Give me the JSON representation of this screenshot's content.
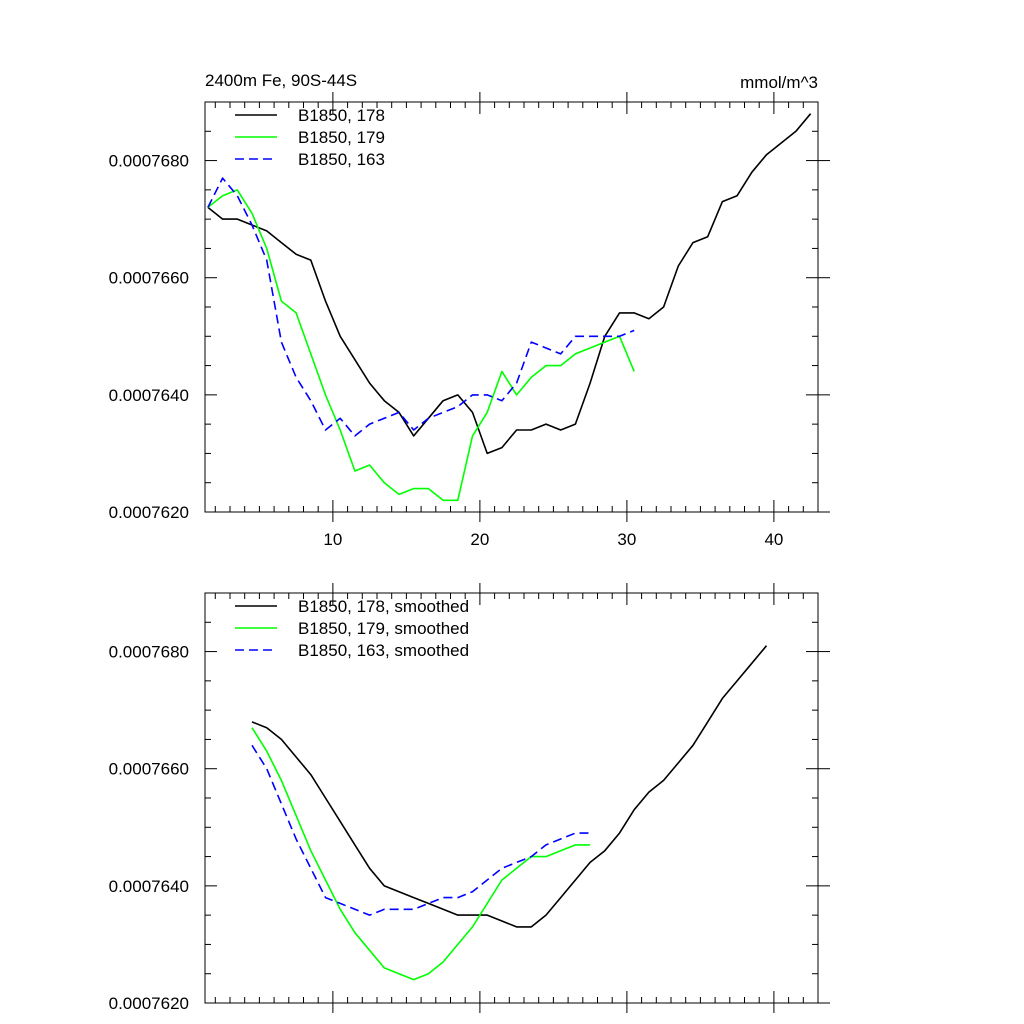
{
  "chart_data": [
    {
      "type": "line",
      "title": "2400m Fe, 90S-44S",
      "units": "mmol/m^3",
      "xlim": [
        1.3,
        43
      ],
      "ylim": [
        0.000762,
        0.000769
      ],
      "xticks": [
        10,
        20,
        30,
        40
      ],
      "xtick_labels": [
        "10",
        "20",
        "30",
        "40"
      ],
      "yticks": [
        0.000762,
        0.000764,
        0.000766,
        0.000768
      ],
      "ytick_labels": [
        "0.0007620",
        "0.0007640",
        "0.0007660",
        "0.0007680"
      ],
      "legend_position": "top-left",
      "grid": false,
      "series": [
        {
          "name": "B1850, 178",
          "color": "#000000",
          "dash": "solid",
          "x": [
            1.5,
            2.5,
            3.5,
            4.5,
            5.5,
            6.5,
            7.5,
            8.5,
            9.5,
            10.5,
            11.5,
            12.5,
            13.5,
            14.5,
            15.5,
            16.5,
            17.5,
            18.5,
            19.5,
            20.5,
            21.5,
            22.5,
            23.5,
            24.5,
            25.5,
            26.5,
            27.5,
            28.5,
            29.5,
            30.5,
            31.5,
            32.5,
            33.5,
            34.5,
            35.5,
            36.5,
            37.5,
            38.5,
            39.5,
            40.5,
            41.5,
            42.5
          ],
          "y": [
            0.0007672,
            0.000767,
            0.000767,
            0.0007669,
            0.0007668,
            0.0007666,
            0.0007664,
            0.0007663,
            0.0007656,
            0.000765,
            0.0007646,
            0.0007642,
            0.0007639,
            0.0007637,
            0.0007633,
            0.0007636,
            0.0007639,
            0.000764,
            0.0007637,
            0.000763,
            0.0007631,
            0.0007634,
            0.0007634,
            0.0007635,
            0.0007634,
            0.0007635,
            0.0007642,
            0.000765,
            0.0007654,
            0.0007654,
            0.0007653,
            0.0007655,
            0.0007662,
            0.0007666,
            0.0007667,
            0.0007673,
            0.0007674,
            0.0007678,
            0.0007681,
            0.0007683,
            0.0007685,
            0.0007688
          ]
        },
        {
          "name": "B1850, 179",
          "color": "#00ff00",
          "dash": "solid",
          "x": [
            1.5,
            2.5,
            3.5,
            4.5,
            5.5,
            6.5,
            7.5,
            8.5,
            9.5,
            10.5,
            11.5,
            12.5,
            13.5,
            14.5,
            15.5,
            16.5,
            17.5,
            18.5,
            19.5,
            20.5,
            21.5,
            22.5,
            23.5,
            24.5,
            25.5,
            26.5,
            27.5,
            28.5,
            29.5,
            30.5
          ],
          "y": [
            0.0007672,
            0.0007674,
            0.0007675,
            0.0007671,
            0.0007665,
            0.0007656,
            0.0007654,
            0.0007647,
            0.000764,
            0.0007634,
            0.0007627,
            0.0007628,
            0.0007625,
            0.0007623,
            0.0007624,
            0.0007624,
            0.0007622,
            0.0007622,
            0.0007633,
            0.0007637,
            0.0007644,
            0.000764,
            0.0007643,
            0.0007645,
            0.0007645,
            0.0007647,
            0.0007648,
            0.0007649,
            0.000765,
            0.0007644
          ]
        },
        {
          "name": "B1850, 163",
          "color": "#0000ff",
          "dash": "dashed",
          "x": [
            1.5,
            2.5,
            3.5,
            4.5,
            5.5,
            6.5,
            7.5,
            8.5,
            9.5,
            10.5,
            11.5,
            12.5,
            13.5,
            14.5,
            15.5,
            16.5,
            17.5,
            18.5,
            19.5,
            20.5,
            21.5,
            22.5,
            23.5,
            24.5,
            25.5,
            26.5,
            27.5,
            28.5,
            29.5,
            30.5
          ],
          "y": [
            0.0007672,
            0.0007677,
            0.0007674,
            0.0007669,
            0.0007663,
            0.0007649,
            0.0007643,
            0.0007639,
            0.0007634,
            0.0007636,
            0.0007633,
            0.0007635,
            0.0007636,
            0.0007637,
            0.0007634,
            0.0007636,
            0.0007637,
            0.0007638,
            0.000764,
            0.000764,
            0.0007639,
            0.0007642,
            0.0007649,
            0.0007648,
            0.0007647,
            0.000765,
            0.000765,
            0.000765,
            0.000765,
            0.0007651
          ]
        }
      ]
    },
    {
      "type": "line",
      "xlim": [
        1.3,
        43
      ],
      "ylim": [
        0.000762,
        0.000769
      ],
      "xticks": [
        10,
        20,
        30,
        40
      ],
      "yticks": [
        0.000762,
        0.000764,
        0.000766,
        0.000768
      ],
      "ytick_labels": [
        "0.0007620",
        "0.0007640",
        "0.0007660",
        "0.0007680"
      ],
      "legend_position": "top-left",
      "grid": false,
      "series": [
        {
          "name": "B1850, 178, smoothed",
          "color": "#000000",
          "dash": "solid",
          "x": [
            4.5,
            5.5,
            6.5,
            7.5,
            8.5,
            9.5,
            10.5,
            11.5,
            12.5,
            13.5,
            14.5,
            15.5,
            16.5,
            17.5,
            18.5,
            19.5,
            20.5,
            21.5,
            22.5,
            23.5,
            24.5,
            25.5,
            26.5,
            27.5,
            28.5,
            29.5,
            30.5,
            31.5,
            32.5,
            33.5,
            34.5,
            35.5,
            36.5,
            37.5,
            38.5,
            39.5
          ],
          "y": [
            0.0007668,
            0.0007667,
            0.0007665,
            0.0007662,
            0.0007659,
            0.0007655,
            0.0007651,
            0.0007647,
            0.0007643,
            0.000764,
            0.0007639,
            0.0007638,
            0.0007637,
            0.0007636,
            0.0007635,
            0.0007635,
            0.0007635,
            0.0007634,
            0.0007633,
            0.0007633,
            0.0007635,
            0.0007638,
            0.0007641,
            0.0007644,
            0.0007646,
            0.0007649,
            0.0007653,
            0.0007656,
            0.0007658,
            0.0007661,
            0.0007664,
            0.0007668,
            0.0007672,
            0.0007675,
            0.0007678,
            0.0007681
          ]
        },
        {
          "name": "B1850, 179, smoothed",
          "color": "#00ff00",
          "dash": "solid",
          "x": [
            4.5,
            5.5,
            6.5,
            7.5,
            8.5,
            9.5,
            10.5,
            11.5,
            12.5,
            13.5,
            14.5,
            15.5,
            16.5,
            17.5,
            18.5,
            19.5,
            20.5,
            21.5,
            22.5,
            23.5,
            24.5,
            25.5,
            26.5,
            27.5
          ],
          "y": [
            0.0007667,
            0.0007663,
            0.0007658,
            0.0007652,
            0.0007646,
            0.0007641,
            0.0007636,
            0.0007632,
            0.0007629,
            0.0007626,
            0.0007625,
            0.0007624,
            0.0007625,
            0.0007627,
            0.000763,
            0.0007633,
            0.0007637,
            0.0007641,
            0.0007643,
            0.0007645,
            0.0007645,
            0.0007646,
            0.0007647,
            0.0007647
          ]
        },
        {
          "name": "B1850, 163, smoothed",
          "color": "#0000ff",
          "dash": "dashed",
          "x": [
            4.5,
            5.5,
            6.5,
            7.5,
            8.5,
            9.5,
            10.5,
            11.5,
            12.5,
            13.5,
            14.5,
            15.5,
            16.5,
            17.5,
            18.5,
            19.5,
            20.5,
            21.5,
            22.5,
            23.5,
            24.5,
            25.5,
            26.5,
            27.5
          ],
          "y": [
            0.0007664,
            0.000766,
            0.0007654,
            0.0007648,
            0.0007643,
            0.0007638,
            0.0007637,
            0.0007636,
            0.0007635,
            0.0007636,
            0.0007636,
            0.0007636,
            0.0007637,
            0.0007638,
            0.0007638,
            0.0007639,
            0.0007641,
            0.0007643,
            0.0007644,
            0.0007645,
            0.0007647,
            0.0007648,
            0.0007649,
            0.0007649
          ]
        }
      ]
    }
  ]
}
